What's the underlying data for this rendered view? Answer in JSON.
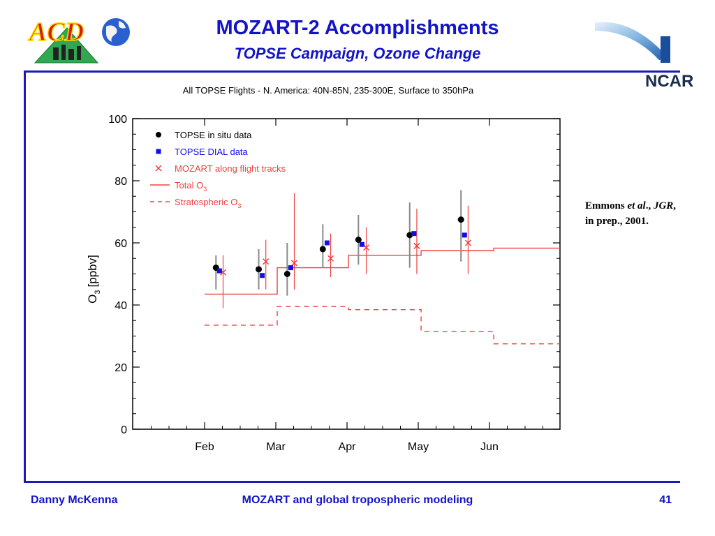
{
  "header": {
    "logo_left_text": "ACD",
    "logo_right_text": "NCAR",
    "title": "MOZART-2 Accomplishments",
    "subtitle": "TOPSE Campaign, Ozone Change"
  },
  "citation": {
    "author": "Emmons",
    "etal": "et al",
    "journal": "JGR",
    "line2": "in prep., 2001."
  },
  "footer": {
    "left": "Danny McKenna",
    "center": "MOZART and global tropospheric modeling",
    "page": "41"
  },
  "colors": {
    "accent": "#1313c8",
    "insitu": "#000000",
    "dial": "#1010e0",
    "mozart": "#f04040"
  },
  "chart_data": {
    "type": "scatter",
    "title": "All TOPSE Flights - N. America: 40N-85N, 235-300E, Surface to 350hPa",
    "ylabel_main": "O",
    "ylabel_sub": "3",
    "ylabel_unit": "[ppbv]",
    "ylim": [
      0,
      100
    ],
    "yticks": [
      0,
      20,
      40,
      60,
      80,
      100
    ],
    "xlim": [
      0,
      5
    ],
    "xticks": [
      {
        "label": "Feb",
        "value": 0
      },
      {
        "label": "Mar",
        "value": 1
      },
      {
        "label": "Apr",
        "value": 2
      },
      {
        "label": "May",
        "value": 3
      },
      {
        "label": "Jun",
        "value": 4
      }
    ],
    "legend": [
      {
        "label": "TOPSE in situ data",
        "kind": "dot"
      },
      {
        "label": "TOPSE DIAL data",
        "kind": "square"
      },
      {
        "label": "MOZART along flight tracks",
        "kind": "cross"
      },
      {
        "label": "Total O",
        "sub": "3",
        "kind": "solid"
      },
      {
        "label": "Stratospheric O",
        "sub": "3",
        "kind": "dashed"
      }
    ],
    "series": [
      {
        "name": "TOPSE in situ data",
        "points": [
          {
            "x": 0.16,
            "y": 52,
            "lo": 45,
            "hi": 56
          },
          {
            "x": 0.76,
            "y": 51.5,
            "lo": 45,
            "hi": 58
          },
          {
            "x": 1.16,
            "y": 50,
            "lo": 43,
            "hi": 60
          },
          {
            "x": 1.66,
            "y": 58,
            "lo": 52,
            "hi": 66
          },
          {
            "x": 2.16,
            "y": 61,
            "lo": 53,
            "hi": 69
          },
          {
            "x": 2.88,
            "y": 62.5,
            "lo": 52,
            "hi": 73
          },
          {
            "x": 3.6,
            "y": 67.5,
            "lo": 54,
            "hi": 77
          }
        ]
      },
      {
        "name": "TOPSE DIAL data",
        "points": [
          {
            "x": 0.21,
            "y": 51
          },
          {
            "x": 0.81,
            "y": 49.5
          },
          {
            "x": 1.21,
            "y": 52
          },
          {
            "x": 1.72,
            "y": 60
          },
          {
            "x": 2.21,
            "y": 59.5
          },
          {
            "x": 2.94,
            "y": 63
          },
          {
            "x": 3.65,
            "y": 62.5
          }
        ]
      },
      {
        "name": "MOZART along flight tracks",
        "points": [
          {
            "x": 0.26,
            "y": 50.5,
            "lo": 39,
            "hi": 56
          },
          {
            "x": 0.86,
            "y": 54,
            "lo": 45,
            "hi": 61
          },
          {
            "x": 1.26,
            "y": 53.5,
            "lo": 45,
            "hi": 76
          },
          {
            "x": 1.77,
            "y": 55,
            "lo": 49,
            "hi": 63
          },
          {
            "x": 2.27,
            "y": 58.5,
            "lo": 50,
            "hi": 65
          },
          {
            "x": 2.98,
            "y": 59,
            "lo": 50,
            "hi": 71
          },
          {
            "x": 3.7,
            "y": 60,
            "lo": 50,
            "hi": 72
          }
        ]
      },
      {
        "name": "Total O3",
        "steps": [
          {
            "x0": 0,
            "x1": 1.02,
            "y": 43.5
          },
          {
            "x0": 1.02,
            "x1": 2.02,
            "y": 52
          },
          {
            "x0": 2.02,
            "x1": 3.04,
            "y": 56
          },
          {
            "x0": 3.04,
            "x1": 4.06,
            "y": 57.5
          },
          {
            "x0": 4.06,
            "x1": 5.1,
            "y": 58.3
          }
        ]
      },
      {
        "name": "Stratospheric O3",
        "steps": [
          {
            "x0": 0,
            "x1": 1.02,
            "y": 33.5
          },
          {
            "x0": 1.02,
            "x1": 2.02,
            "y": 39.5
          },
          {
            "x0": 2.02,
            "x1": 3.04,
            "y": 38.5
          },
          {
            "x0": 3.04,
            "x1": 4.06,
            "y": 31.5
          },
          {
            "x0": 4.06,
            "x1": 5.1,
            "y": 27.5
          }
        ]
      }
    ],
    "grid": false,
    "legend_position": "top-left"
  }
}
